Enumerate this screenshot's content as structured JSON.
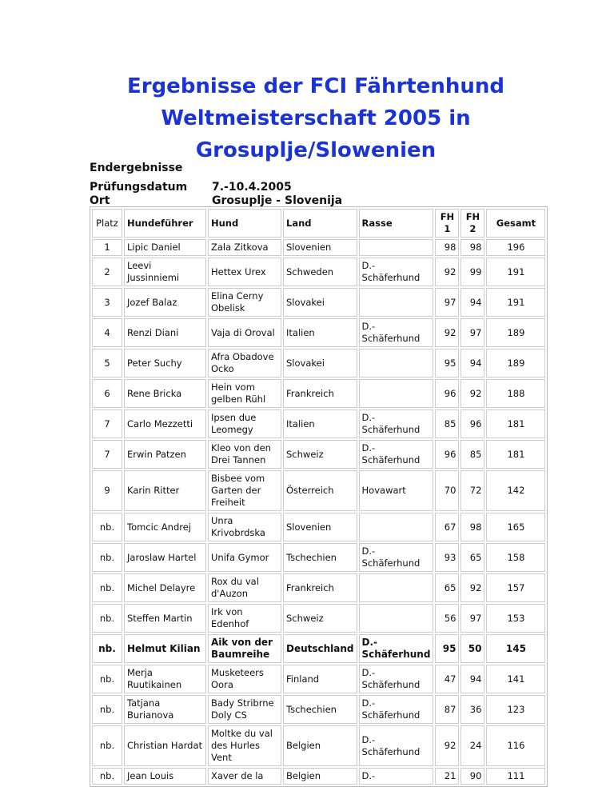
{
  "title": "Ergebnisse der FCI Fährtenhund Weltmeisterschaft 2005 in Grosuplje/Slowenien",
  "subtitle": "Endergebnisse",
  "meta": [
    {
      "label": "Prüfungsdatum",
      "value": "7.-10.4.2005"
    },
    {
      "label": "Ort",
      "value": "Grosuplje - Slovenija"
    }
  ],
  "columns": [
    "Platz",
    "Hundeführer",
    "Hund",
    "Land",
    "Rasse",
    "FH 1",
    "FH 2",
    "Gesamt"
  ],
  "rows": [
    [
      "1",
      "Lipic Daniel",
      "Zala Zitkova",
      "Slovenien",
      "",
      "98",
      "98",
      "196"
    ],
    [
      "2",
      "Leevi Jussinniemi",
      "Hettex Urex",
      "Schweden",
      "D.-Schäferhund",
      "92",
      "99",
      "191"
    ],
    [
      "3",
      "Jozef Balaz",
      "Elina Cerny Obelisk",
      "Slovakei",
      "",
      "97",
      "94",
      "191"
    ],
    [
      "4",
      "Renzi Diani",
      "Vaja di Oroval",
      "Italien",
      "D.-Schäferhund",
      "92",
      "97",
      "189"
    ],
    [
      "5",
      "Peter Suchy",
      "Afra Obadove Ocko",
      "Slovakei",
      "",
      "95",
      "94",
      "189"
    ],
    [
      "6",
      "Rene Bricka",
      "Hein vom gelben Rühl",
      "Frankreich",
      "",
      "96",
      "92",
      "188"
    ],
    [
      "7",
      "Carlo Mezzetti",
      "Ipsen due Leomegy",
      "Italien",
      "D.-Schäferhund",
      "85",
      "96",
      "181"
    ],
    [
      "7",
      "Erwin Patzen",
      "Kleo von den Drei Tannen",
      "Schweiz",
      "D.-Schäferhund",
      "96",
      "85",
      "181"
    ],
    [
      "9",
      "Karin Ritter",
      "Bisbee vom Garten der Freiheit",
      "Österreich",
      "Hovawart",
      "70",
      "72",
      "142"
    ],
    [
      "nb.",
      "Tomcic Andrej",
      "Unra Krivobrdska",
      "Slovenien",
      "",
      "67",
      "98",
      "165"
    ],
    [
      "nb.",
      "Jaroslaw Hartel",
      "Unifa Gymor",
      "Tschechien",
      "D.-Schäferhund",
      "93",
      "65",
      "158"
    ],
    [
      "nb.",
      "Michel Delayre",
      "Rox du val d'Auzon",
      "Frankreich",
      "",
      "65",
      "92",
      "157"
    ],
    [
      "nb.",
      "Steffen Martin",
      "Irk von Edenhof",
      "Schweiz",
      "",
      "56",
      "97",
      "153"
    ],
    [
      "nb.",
      "Helmut Kilian",
      "Aik von der Baumreihe",
      "Deutschland",
      "D.-Schäferhund",
      "95",
      "50",
      "145"
    ],
    [
      "nb.",
      "Merja Ruutikainen",
      "Musketeers Oora",
      "Finland",
      "D.-Schäferhund",
      "47",
      "94",
      "141"
    ],
    [
      "nb.",
      "Tatjana Burianova",
      "Bady Stribrne Doly CS",
      "Tschechien",
      "D.-Schäferhund",
      "87",
      "36",
      "123"
    ],
    [
      "nb.",
      "Christian Hardat",
      "Moltke du val des Hurles Vent",
      "Belgien",
      "D.-Schäferhund",
      "92",
      "24",
      "116"
    ],
    [
      "nb.",
      "Jean Louis",
      "Xaver de la",
      "Belgien",
      "D.-",
      "21",
      "90",
      "111"
    ]
  ],
  "bold_row_index": 13,
  "colors": {
    "title": "#1a33d6"
  }
}
